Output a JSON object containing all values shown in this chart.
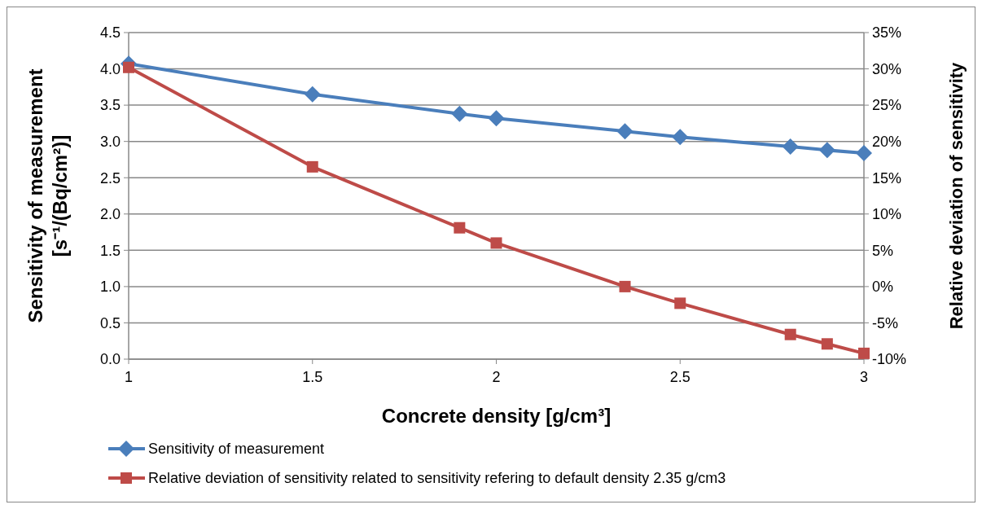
{
  "chart_data": {
    "type": "line",
    "xlabel": "Concrete density [g/cm³]",
    "ylabel": "Sensitivity of measurement\n[s⁻¹/(Bq/cm²)]",
    "y2label": "Relative deviation of sensitivity",
    "x": [
      1,
      1.5,
      1.9,
      2,
      2.35,
      2.5,
      2.8,
      2.9,
      3
    ],
    "xlim": [
      1,
      3
    ],
    "xticks": [
      1,
      1.5,
      2,
      2.5,
      3
    ],
    "ylim": [
      0,
      4.5
    ],
    "yticks": [
      {
        "value": 0,
        "label": "0.0"
      },
      {
        "value": 0.5,
        "label": "0.5"
      },
      {
        "value": 1,
        "label": "1.0"
      },
      {
        "value": 1.5,
        "label": "1.5"
      },
      {
        "value": 2,
        "label": "2.0"
      },
      {
        "value": 2.5,
        "label": "2.5"
      },
      {
        "value": 3,
        "label": "3.0"
      },
      {
        "value": 3.5,
        "label": "3.5"
      },
      {
        "value": 4,
        "label": "4.0"
      },
      {
        "value": 4.5,
        "label": "4.5"
      }
    ],
    "y2lim": [
      -10,
      35
    ],
    "y2ticks": [
      {
        "value": -10,
        "label": "-10%"
      },
      {
        "value": -5,
        "label": "-5%"
      },
      {
        "value": 0,
        "label": "0%"
      },
      {
        "value": 5,
        "label": "5%"
      },
      {
        "value": 10,
        "label": "10%"
      },
      {
        "value": 15,
        "label": "15%"
      },
      {
        "value": 20,
        "label": "20%"
      },
      {
        "value": 25,
        "label": "25%"
      },
      {
        "value": 30,
        "label": "30%"
      },
      {
        "value": 35,
        "label": "35%"
      }
    ],
    "grid": "y",
    "legend": "bottom",
    "line_style": "solid",
    "series": [
      {
        "name": "Sensitivity of measurement",
        "color": "#4a7ebb",
        "marker": "diamond",
        "values": [
          4.07,
          3.65,
          3.38,
          3.32,
          3.14,
          3.06,
          2.93,
          2.88,
          2.84
        ]
      },
      {
        "name": "Relative deviation of sensitivity related to sensitivity refering to default density 2.35 g/cm3",
        "color": "#be4b48",
        "marker": "square",
        "axis": "y2",
        "values": [
          30.2,
          16.5,
          8.1,
          6.0,
          0,
          -2.3,
          -6.6,
          -7.9,
          -9.2
        ]
      }
    ]
  }
}
